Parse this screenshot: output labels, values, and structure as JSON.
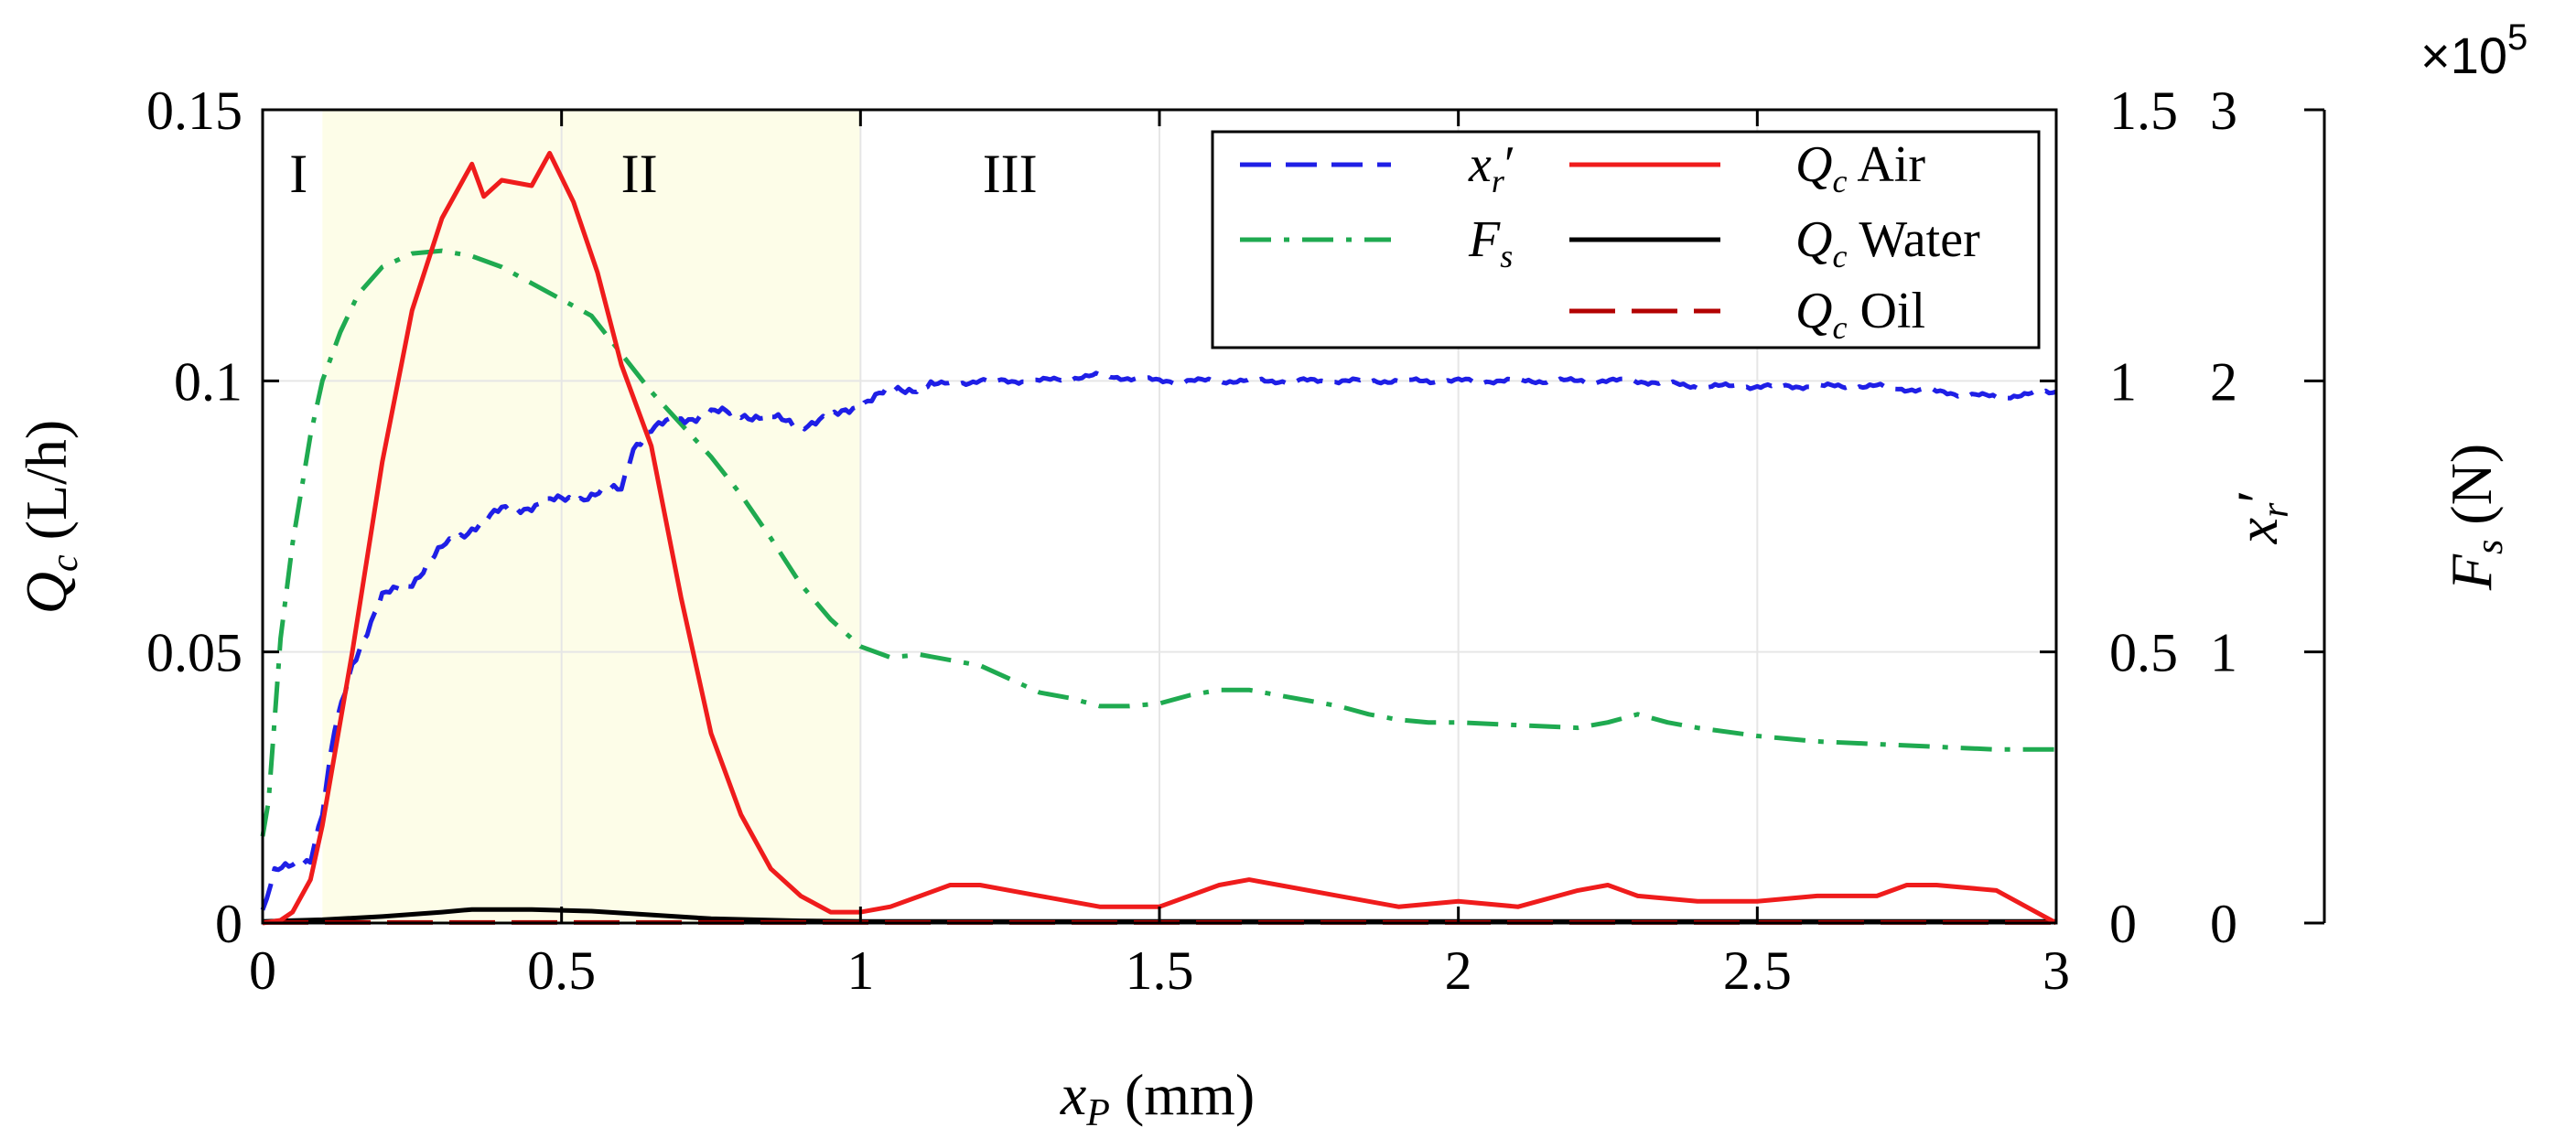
{
  "chart_data": {
    "type": "line",
    "xlabel": {
      "main": "x",
      "sub": "P",
      "units": " (mm)"
    },
    "ylabel_left": {
      "main": "Q",
      "sub": "c",
      "units": " (L/h)"
    },
    "ylabel_mid": {
      "main": "x",
      "sub": "r",
      "prime": "′"
    },
    "ylabel_right": {
      "main": "F",
      "sub": "s",
      "units": " (N)"
    },
    "right_exponent": {
      "base": "×10",
      "power": "5"
    },
    "xlim": [
      0,
      3
    ],
    "ylim_left": [
      0,
      0.15
    ],
    "ylim_mid": [
      0,
      1.5
    ],
    "ylim_right": [
      0,
      300000
    ],
    "x_ticks": [
      "0",
      "0.5",
      "1",
      "1.5",
      "2",
      "2.5",
      "3"
    ],
    "x_tick_values": [
      0,
      0.5,
      1,
      1.5,
      2,
      2.5,
      3
    ],
    "y_left_ticks": [
      "0",
      "0.05",
      "0.1",
      "0.15"
    ],
    "y_left_tick_values": [
      0,
      0.05,
      0.1,
      0.15
    ],
    "y_mid_ticks": [
      "0",
      "0.5",
      "1",
      "1.5"
    ],
    "y_mid_tick_values": [
      0,
      0.5,
      1,
      1.5
    ],
    "y_right_ticks": [
      "0",
      "1",
      "2",
      "3"
    ],
    "y_right_tick_values": [
      0,
      100000,
      200000,
      300000
    ],
    "regions": [
      {
        "label": "I",
        "x_label": 0.06,
        "x_range": [
          0,
          0.1
        ],
        "shaded": false
      },
      {
        "label": "II",
        "x_label": 0.63,
        "x_range": [
          0.1,
          1.0
        ],
        "shaded": true
      },
      {
        "label": "III",
        "x_label": 1.25,
        "x_range": [
          1.0,
          3.0
        ],
        "shaded": false
      }
    ],
    "shade_color": "#fdfde8",
    "legend_position": "top-right",
    "series": [
      {
        "id": "xr",
        "name": {
          "main": "x",
          "sub": "r",
          "rest": "′"
        },
        "axis": "mid",
        "color": "#1f1fe6",
        "style": "dashed",
        "noise": 0.011,
        "x": [
          0,
          0.02,
          0.05,
          0.08,
          0.1,
          0.12,
          0.15,
          0.2,
          0.25,
          0.3,
          0.35,
          0.4,
          0.45,
          0.5,
          0.55,
          0.6,
          0.62,
          0.65,
          0.7,
          0.75,
          0.8,
          0.85,
          0.9,
          0.95,
          1.0,
          1.05,
          1.1,
          1.2,
          1.3,
          1.4,
          1.5,
          1.6,
          1.7,
          1.8,
          1.9,
          2.0,
          2.1,
          2.2,
          2.3,
          2.4,
          2.5,
          2.6,
          2.7,
          2.8,
          2.9,
          3.0
        ],
        "y": [
          0.02,
          0.09,
          0.11,
          0.12,
          0.2,
          0.35,
          0.48,
          0.6,
          0.63,
          0.69,
          0.73,
          0.76,
          0.77,
          0.78,
          0.79,
          0.8,
          0.88,
          0.91,
          0.93,
          0.94,
          0.94,
          0.93,
          0.92,
          0.93,
          0.96,
          0.98,
          0.99,
          1.0,
          1.0,
          1.01,
          1.0,
          1.0,
          1.0,
          1.0,
          1.0,
          1.0,
          1.0,
          1.0,
          1.0,
          0.99,
          0.99,
          0.99,
          0.99,
          0.98,
          0.97,
          0.98
        ]
      },
      {
        "id": "fs",
        "name": {
          "main": "F",
          "sub": "s",
          "rest": ""
        },
        "axis": "right",
        "color": "#1faa50",
        "style": "dashdot",
        "noise": 0,
        "x": [
          0,
          0.01,
          0.02,
          0.03,
          0.05,
          0.08,
          0.1,
          0.13,
          0.16,
          0.2,
          0.25,
          0.3,
          0.35,
          0.4,
          0.45,
          0.5,
          0.55,
          0.6,
          0.65,
          0.7,
          0.75,
          0.8,
          0.85,
          0.9,
          0.95,
          1.0,
          1.05,
          1.1,
          1.15,
          1.2,
          1.25,
          1.3,
          1.35,
          1.4,
          1.45,
          1.5,
          1.55,
          1.6,
          1.65,
          1.7,
          1.75,
          1.8,
          1.85,
          1.9,
          1.95,
          2.0,
          2.1,
          2.2,
          2.25,
          2.3,
          2.35,
          2.4,
          2.5,
          2.6,
          2.7,
          2.8,
          2.9,
          3.0
        ],
        "y": [
          32000,
          45000,
          75000,
          105000,
          140000,
          180000,
          200000,
          218000,
          232000,
          242000,
          247000,
          248000,
          246000,
          242000,
          236000,
          230000,
          224000,
          210000,
          196000,
          184000,
          172000,
          158000,
          142000,
          125000,
          112000,
          102000,
          98000,
          99000,
          97000,
          95000,
          90000,
          85000,
          83000,
          80000,
          80000,
          81000,
          84000,
          86000,
          86000,
          84000,
          82000,
          80000,
          77000,
          75000,
          74000,
          74000,
          73000,
          72000,
          74000,
          77000,
          74000,
          72000,
          69000,
          67000,
          66000,
          65000,
          64000,
          64000
        ]
      },
      {
        "id": "qair",
        "name": {
          "main": "Q",
          "sub": "c",
          "rest": " Air"
        },
        "axis": "left",
        "color": "#ef1c1c",
        "style": "solid",
        "noise": 0,
        "x": [
          0,
          0.03,
          0.05,
          0.08,
          0.1,
          0.15,
          0.2,
          0.25,
          0.3,
          0.35,
          0.37,
          0.4,
          0.45,
          0.48,
          0.52,
          0.56,
          0.6,
          0.65,
          0.7,
          0.75,
          0.8,
          0.85,
          0.9,
          0.95,
          1.0,
          1.05,
          1.1,
          1.15,
          1.2,
          1.3,
          1.4,
          1.5,
          1.6,
          1.65,
          1.7,
          1.8,
          1.9,
          2.0,
          2.1,
          2.2,
          2.25,
          2.3,
          2.4,
          2.5,
          2.6,
          2.7,
          2.75,
          2.8,
          2.9,
          2.95,
          3.0
        ],
        "y": [
          0,
          0.0005,
          0.002,
          0.008,
          0.018,
          0.05,
          0.085,
          0.113,
          0.13,
          0.14,
          0.134,
          0.137,
          0.136,
          0.142,
          0.133,
          0.12,
          0.103,
          0.088,
          0.06,
          0.035,
          0.02,
          0.01,
          0.005,
          0.002,
          0.002,
          0.003,
          0.005,
          0.007,
          0.007,
          0.005,
          0.003,
          0.003,
          0.007,
          0.008,
          0.007,
          0.005,
          0.003,
          0.004,
          0.003,
          0.006,
          0.007,
          0.005,
          0.004,
          0.004,
          0.005,
          0.005,
          0.007,
          0.007,
          0.006,
          0.003,
          0
        ]
      },
      {
        "id": "qwater",
        "name": {
          "main": "Q",
          "sub": "c",
          "rest": " Water"
        },
        "axis": "left",
        "color": "#000000",
        "style": "solid",
        "noise": 0,
        "x": [
          0,
          0.1,
          0.2,
          0.3,
          0.35,
          0.45,
          0.55,
          0.65,
          0.75,
          0.9,
          1.0,
          1.5,
          2.0,
          2.5,
          3.0
        ],
        "y": [
          0.0003,
          0.0006,
          0.0012,
          0.002,
          0.0025,
          0.0025,
          0.0022,
          0.0015,
          0.0008,
          0.0004,
          0.0003,
          0.0003,
          0.0003,
          0.0003,
          0.0003
        ]
      },
      {
        "id": "qoil",
        "name": {
          "main": "Q",
          "sub": "c",
          "rest": " Oil"
        },
        "axis": "left",
        "color": "#b30000",
        "style": "longdash",
        "noise": 0,
        "x": [
          0,
          3.0
        ],
        "y": [
          0.0001,
          0.0001
        ]
      }
    ]
  }
}
